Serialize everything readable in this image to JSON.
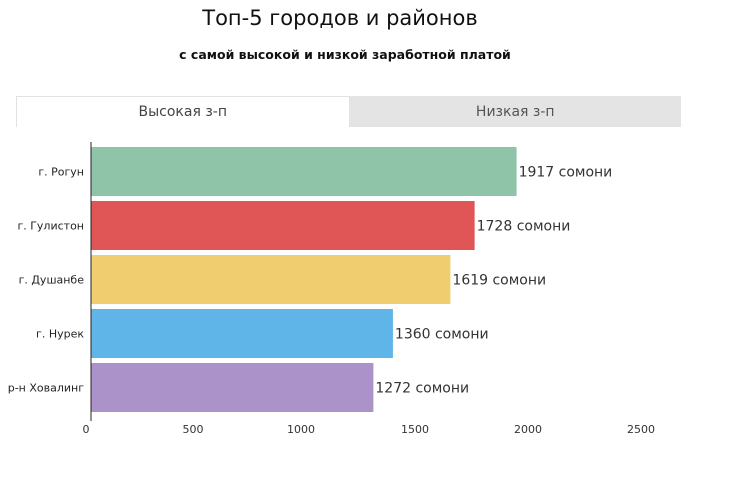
{
  "title": "Топ-5 городов и районов",
  "subtitle": "с самой высокой и низкой заработной платой",
  "tabs": [
    {
      "label": "Высокая з-п",
      "active": true
    },
    {
      "label": "Низкая з-п",
      "active": false
    }
  ],
  "chart_data": {
    "type": "bar",
    "orientation": "horizontal",
    "categories": [
      "г. Рогун",
      "г. Гулистон",
      "г. Душанбе",
      "г. Нурек",
      "р-н Ховалинг"
    ],
    "values": [
      1917,
      1728,
      1619,
      1360,
      1272
    ],
    "value_labels": [
      "1917 сомони",
      "1728 сомони",
      "1619 сомони",
      "1360 сомони",
      "1272 сомони"
    ],
    "colors": [
      "#8fc4a8",
      "#e05555",
      "#f0cd6e",
      "#5fb5e8",
      "#ab92c8"
    ],
    "xlim": [
      0,
      2500
    ],
    "xticks": [
      0,
      500,
      1000,
      1500,
      2000,
      2500
    ],
    "grid": false
  }
}
